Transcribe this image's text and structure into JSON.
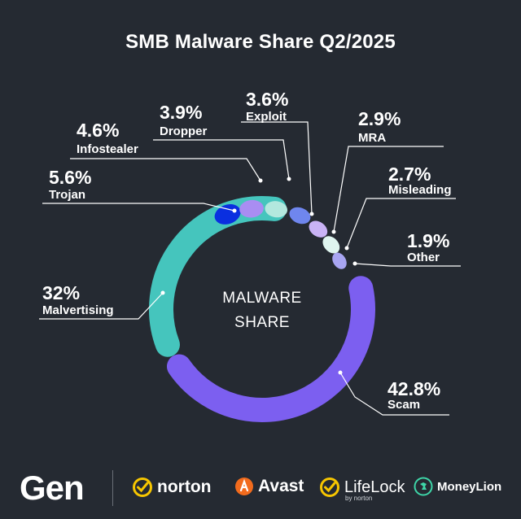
{
  "title": "SMB Malware Share Q2/2025",
  "center_label": [
    "MALWARE",
    "SHARE"
  ],
  "chart_data": {
    "type": "donut",
    "title": "SMB Malware Share Q2/2025",
    "unit": "%",
    "slices": [
      {
        "name": "Scam",
        "value": 42.8,
        "label": "42.8%",
        "color": "#7c5ff0"
      },
      {
        "name": "Malvertising",
        "value": 32,
        "label": "32%",
        "color": "#45c5bd"
      },
      {
        "name": "Trojan",
        "value": 5.6,
        "label": "5.6%",
        "color": "#0a2fe0"
      },
      {
        "name": "Infostealer",
        "value": 4.6,
        "label": "4.6%",
        "color": "#a98df2"
      },
      {
        "name": "Dropper",
        "value": 3.9,
        "label": "3.9%",
        "color": "#b3e8de"
      },
      {
        "name": "Exploit",
        "value": 3.6,
        "label": "3.6%",
        "color": "#6f86ee"
      },
      {
        "name": "MRA",
        "value": 2.9,
        "label": "2.9%",
        "color": "#c9b3f5"
      },
      {
        "name": "Misleading",
        "value": 2.7,
        "label": "2.7%",
        "color": "#dff5ef"
      },
      {
        "name": "Other",
        "value": 1.9,
        "label": "1.9%",
        "color": "#a8a5f2"
      }
    ]
  },
  "footer": {
    "gen": "Gen",
    "brands": [
      {
        "name": "norton",
        "icon": "norton-check-icon"
      },
      {
        "name": "Avast",
        "icon": "avast-icon"
      },
      {
        "name": "LifeLock",
        "sub": "by norton",
        "icon": "lifelock-check-icon"
      },
      {
        "name": "MoneyLion",
        "icon": "moneylion-icon"
      }
    ]
  }
}
